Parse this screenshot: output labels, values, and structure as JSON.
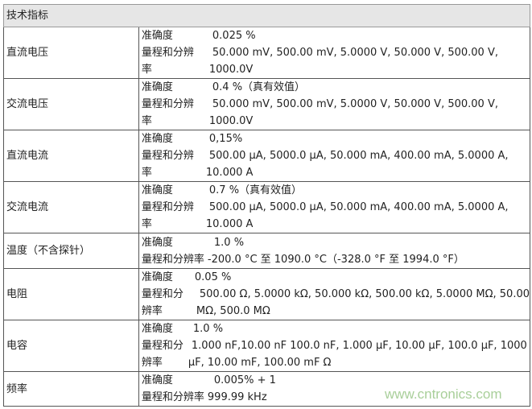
{
  "header": "技术指标",
  "labels": {
    "accuracy": "准确度",
    "range_full": "量程和分辨率",
    "range_a": "量程和分辨",
    "range_a2": "率",
    "range_b": "量程和分",
    "range_b2": "辨率"
  },
  "rows": [
    {
      "name": "直流电压",
      "accuracy": "0.025 %",
      "range1": "50.000 mV, 500.00 mV, 5.0000 V, 50.000 V, 500.00 V,",
      "range2": "1000.0V"
    },
    {
      "name": "交流电压",
      "accuracy": "0.4 %（真有效值）",
      "range1": "50.000 mV, 500.00 mV, 5.0000 V, 50.000 V, 500.00 V,",
      "range2": "1000.0V"
    },
    {
      "name": "直流电流",
      "accuracy": "0,15%",
      "range1": "500.00 µA, 5000.0 µA, 50.000 mA, 400.00 mA, 5.0000 A,",
      "range2": "10.000 A"
    },
    {
      "name": "交流电流",
      "accuracy": "0.7 %（真有效值）",
      "range1": "500.00 µA, 5000.0 µA, 50.000 mA, 400.00 mA, 5.0000 A,",
      "range2": "10.000 A"
    },
    {
      "name": "温度（不含探针）",
      "accuracy": "1.0 %",
      "range1": "-200.0 °C 至 1090.0 °C（-328.0 °F 至 1994.0 °F）"
    },
    {
      "name": "电阻",
      "accuracy": "0.05 %",
      "range1": "500.00 Ω, 5.0000 kΩ, 50.000 kΩ, 500.00 kΩ, 5.0000 MΩ, 50.00",
      "range2": "MΩ, 500.0 MΩ"
    },
    {
      "name": "电容",
      "accuracy": "1.0 %",
      "range1": "1.000 nF,10.00 nF 100.0 nF, 1.000 µF, 10.00 µF, 100.0 µF, 1000",
      "range2": "µF, 10.00 mF, 100.00 mF Ω"
    },
    {
      "name": "频率",
      "accuracy": "0.005% + 1",
      "range1": "999.99 kHz"
    }
  ],
  "watermark": "www.cntronics.com"
}
